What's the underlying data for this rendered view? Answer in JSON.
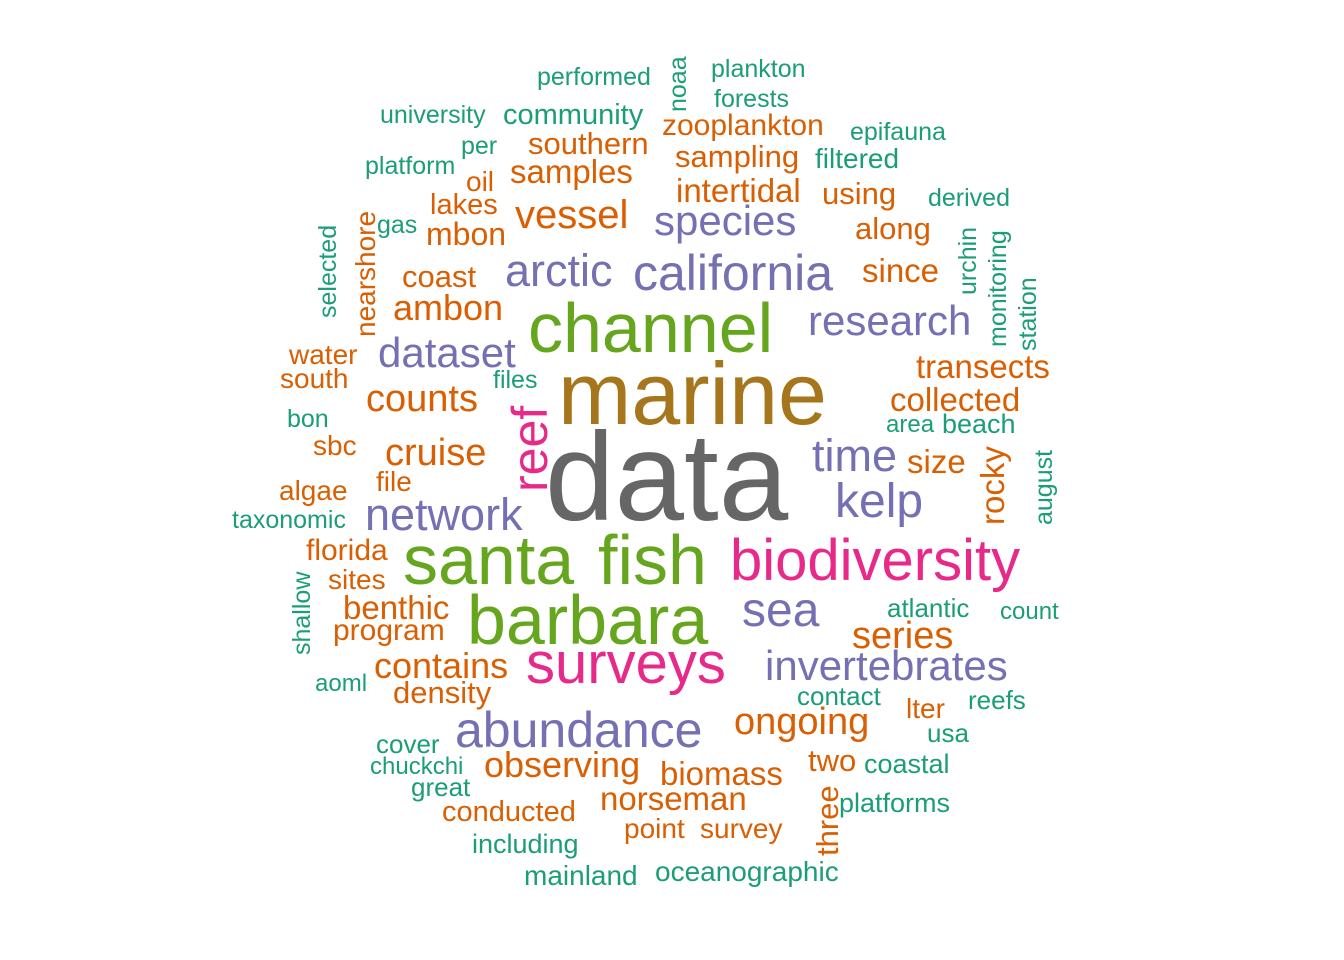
{
  "palette": {
    "gray": "#666666",
    "brown": "#A6761D",
    "green": "#66A61E",
    "magenta": "#E7298A",
    "purple": "#7570B3",
    "orange": "#D95F02",
    "teal": "#1B9E77"
  },
  "words": [
    {
      "text": "data",
      "color": "gray"
    },
    {
      "text": "marine",
      "color": "brown"
    },
    {
      "text": "channel",
      "color": "green"
    },
    {
      "text": "santa",
      "color": "green"
    },
    {
      "text": "fish",
      "color": "green"
    },
    {
      "text": "barbara",
      "color": "green"
    },
    {
      "text": "biodiversity",
      "color": "magenta"
    },
    {
      "text": "surveys",
      "color": "magenta"
    },
    {
      "text": "reef",
      "color": "magenta"
    },
    {
      "text": "california",
      "color": "purple"
    },
    {
      "text": "arctic",
      "color": "purple"
    },
    {
      "text": "species",
      "color": "purple"
    },
    {
      "text": "research",
      "color": "purple"
    },
    {
      "text": "dataset",
      "color": "purple"
    },
    {
      "text": "time",
      "color": "purple"
    },
    {
      "text": "kelp",
      "color": "purple"
    },
    {
      "text": "network",
      "color": "purple"
    },
    {
      "text": "sea",
      "color": "purple"
    },
    {
      "text": "invertebrates",
      "color": "purple"
    },
    {
      "text": "abundance",
      "color": "purple"
    },
    {
      "text": "vessel",
      "color": "orange"
    },
    {
      "text": "ambon",
      "color": "orange"
    },
    {
      "text": "counts",
      "color": "orange"
    },
    {
      "text": "cruise",
      "color": "orange"
    },
    {
      "text": "southern",
      "color": "orange"
    },
    {
      "text": "samples",
      "color": "orange"
    },
    {
      "text": "zooplankton",
      "color": "orange"
    },
    {
      "text": "sampling",
      "color": "orange"
    },
    {
      "text": "intertidal",
      "color": "orange"
    },
    {
      "text": "using",
      "color": "orange"
    },
    {
      "text": "along",
      "color": "orange"
    },
    {
      "text": "since",
      "color": "orange"
    },
    {
      "text": "transects",
      "color": "orange"
    },
    {
      "text": "collected",
      "color": "orange"
    },
    {
      "text": "size",
      "color": "orange"
    },
    {
      "text": "rocky",
      "color": "orange"
    },
    {
      "text": "series",
      "color": "orange"
    },
    {
      "text": "ongoing",
      "color": "orange"
    },
    {
      "text": "lter",
      "color": "orange"
    },
    {
      "text": "two",
      "color": "orange"
    },
    {
      "text": "three",
      "color": "orange"
    },
    {
      "text": "biomass",
      "color": "orange"
    },
    {
      "text": "norseman",
      "color": "orange"
    },
    {
      "text": "survey",
      "color": "orange"
    },
    {
      "text": "point",
      "color": "orange"
    },
    {
      "text": "observing",
      "color": "orange"
    },
    {
      "text": "conducted",
      "color": "orange"
    },
    {
      "text": "contains",
      "color": "orange"
    },
    {
      "text": "density",
      "color": "orange"
    },
    {
      "text": "program",
      "color": "orange"
    },
    {
      "text": "benthic",
      "color": "orange"
    },
    {
      "text": "sites",
      "color": "orange"
    },
    {
      "text": "florida",
      "color": "orange"
    },
    {
      "text": "algae",
      "color": "orange"
    },
    {
      "text": "file",
      "color": "orange"
    },
    {
      "text": "sbc",
      "color": "orange"
    },
    {
      "text": "south",
      "color": "orange"
    },
    {
      "text": "water",
      "color": "orange"
    },
    {
      "text": "coast",
      "color": "orange"
    },
    {
      "text": "mbon",
      "color": "orange"
    },
    {
      "text": "lakes",
      "color": "orange"
    },
    {
      "text": "oil",
      "color": "orange"
    },
    {
      "text": "nearshore",
      "color": "orange"
    },
    {
      "text": "performed",
      "color": "teal"
    },
    {
      "text": "noaa",
      "color": "teal"
    },
    {
      "text": "plankton",
      "color": "teal"
    },
    {
      "text": "forests",
      "color": "teal"
    },
    {
      "text": "university",
      "color": "teal"
    },
    {
      "text": "community",
      "color": "teal"
    },
    {
      "text": "epifauna",
      "color": "teal"
    },
    {
      "text": "per",
      "color": "teal"
    },
    {
      "text": "platform",
      "color": "teal"
    },
    {
      "text": "filtered",
      "color": "teal"
    },
    {
      "text": "derived",
      "color": "teal"
    },
    {
      "text": "gas",
      "color": "teal"
    },
    {
      "text": "selected",
      "color": "teal"
    },
    {
      "text": "urchin",
      "color": "teal"
    },
    {
      "text": "monitoring",
      "color": "teal"
    },
    {
      "text": "station",
      "color": "teal"
    },
    {
      "text": "files",
      "color": "teal"
    },
    {
      "text": "bon",
      "color": "teal"
    },
    {
      "text": "area",
      "color": "teal"
    },
    {
      "text": "beach",
      "color": "teal"
    },
    {
      "text": "august",
      "color": "teal"
    },
    {
      "text": "taxonomic",
      "color": "teal"
    },
    {
      "text": "shallow",
      "color": "teal"
    },
    {
      "text": "atlantic",
      "color": "teal"
    },
    {
      "text": "count",
      "color": "teal"
    },
    {
      "text": "aoml",
      "color": "teal"
    },
    {
      "text": "contact",
      "color": "teal"
    },
    {
      "text": "reefs",
      "color": "teal"
    },
    {
      "text": "usa",
      "color": "teal"
    },
    {
      "text": "cover",
      "color": "teal"
    },
    {
      "text": "chuckchi",
      "color": "teal"
    },
    {
      "text": "great",
      "color": "teal"
    },
    {
      "text": "coastal",
      "color": "teal"
    },
    {
      "text": "platforms",
      "color": "teal"
    },
    {
      "text": "including",
      "color": "teal"
    },
    {
      "text": "mainland",
      "color": "teal"
    },
    {
      "text": "oceanographic",
      "color": "teal"
    }
  ]
}
